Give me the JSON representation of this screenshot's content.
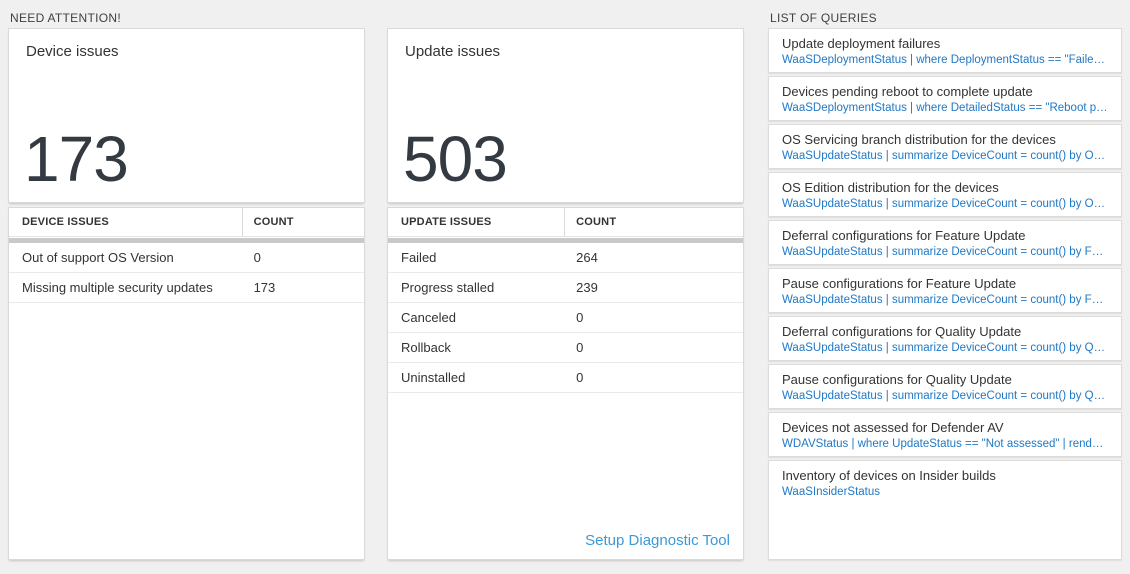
{
  "colors": {
    "page_bg": "#f0f0f0",
    "query_code_blue": "#2178c4",
    "link_blue": "#3b99d8",
    "kpi_number": "#333a42",
    "grid_scrollbar_gray": "#c9c9c9"
  },
  "need_attention": {
    "header": "NEED ATTENTION!",
    "device_tile": {
      "title": "Device issues",
      "count": "173"
    },
    "device_table": {
      "headers": {
        "issue": "DEVICE ISSUES",
        "count": "COUNT"
      },
      "rows": [
        {
          "label": "Out of support OS Version",
          "count": "0"
        },
        {
          "label": "Missing multiple security updates",
          "count": "173"
        }
      ]
    },
    "update_tile": {
      "title": "Update issues",
      "count": "503"
    },
    "update_table": {
      "headers": {
        "issue": "UPDATE ISSUES",
        "count": "COUNT"
      },
      "rows": [
        {
          "label": "Failed",
          "count": "264"
        },
        {
          "label": "Progress stalled",
          "count": "239"
        },
        {
          "label": "Canceled",
          "count": "0"
        },
        {
          "label": "Rollback",
          "count": "0"
        },
        {
          "label": "Uninstalled",
          "count": "0"
        }
      ],
      "footer_link": "Setup Diagnostic Tool"
    }
  },
  "queries": {
    "header": "LIST OF QUERIES",
    "items": [
      {
        "title": "Update deployment failures",
        "query": "WaaSDeploymentStatus | where DeploymentStatus == \"Failed\" |..."
      },
      {
        "title": "Devices pending reboot to complete update",
        "query": "WaaSDeploymentStatus | where DetailedStatus == \"Reboot pend..."
      },
      {
        "title": "OS Servicing branch distribution for the devices",
        "query": "WaaSUpdateStatus | summarize DeviceCount = count() by OSSer..."
      },
      {
        "title": "OS Edition distribution for the devices",
        "query": "WaaSUpdateStatus | summarize DeviceCount = count() by OSEdit..."
      },
      {
        "title": "Deferral configurations for Feature Update",
        "query": "WaaSUpdateStatus | summarize DeviceCount = count() by Featur..."
      },
      {
        "title": "Pause configurations for Feature Update",
        "query": "WaaSUpdateStatus | summarize DeviceCount = count() by Featur..."
      },
      {
        "title": "Deferral configurations for Quality Update",
        "query": "WaaSUpdateStatus | summarize DeviceCount = count() by Qualit..."
      },
      {
        "title": "Pause configurations for Quality Update",
        "query": "WaaSUpdateStatus | summarize DeviceCount = count() by Qualit..."
      },
      {
        "title": "Devices not assessed for Defender AV",
        "query": "WDAVStatus | where UpdateStatus == \"Not assessed\" | render ta..."
      },
      {
        "title": "Inventory of devices on Insider builds",
        "query": "WaaSInsiderStatus"
      }
    ]
  }
}
